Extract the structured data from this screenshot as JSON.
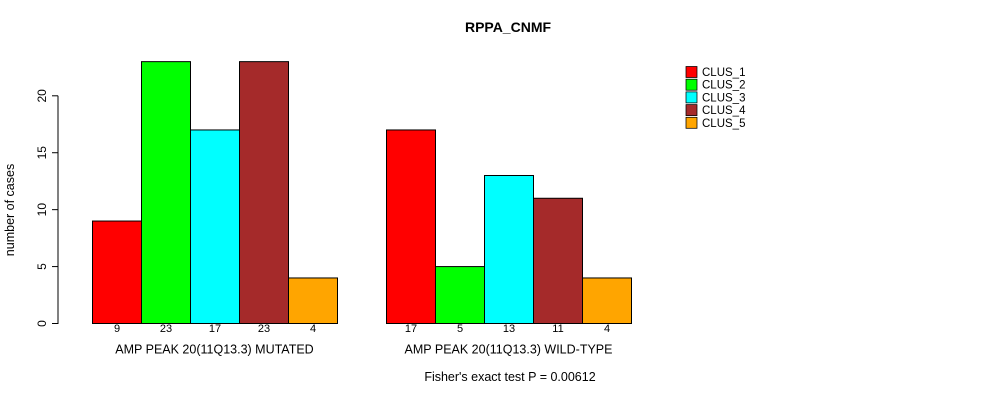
{
  "chart_data": {
    "type": "bar",
    "title": "RPPA_CNMF",
    "ylabel": "number of cases",
    "xlabel": "",
    "yticks": [
      0,
      5,
      10,
      15,
      20
    ],
    "ylim": [
      0,
      23.7
    ],
    "grid": false,
    "legend_position": "right",
    "bar_borders": true,
    "categories": [
      "AMP PEAK 20(11Q13.3) MUTATED",
      "AMP PEAK 20(11Q13.3) WILD-TYPE"
    ],
    "series": [
      {
        "name": "CLUS_1",
        "color": "#ff0000",
        "values": [
          9,
          17
        ]
      },
      {
        "name": "CLUS_2",
        "color": "#00ff00",
        "values": [
          23,
          5
        ]
      },
      {
        "name": "CLUS_3",
        "color": "#00ffff",
        "values": [
          17,
          13
        ]
      },
      {
        "name": "CLUS_4",
        "color": "#a52a2a",
        "values": [
          23,
          11
        ]
      },
      {
        "name": "CLUS_5",
        "color": "#ffa500",
        "values": [
          4,
          4
        ]
      }
    ],
    "bar_value_labels": {
      "AMP PEAK 20(11Q13.3) MUTATED": [
        9,
        23,
        17,
        23,
        4
      ],
      "AMP PEAK 20(11Q13.3) WILD-TYPE": [
        17,
        5,
        13,
        11,
        4
      ]
    },
    "annotation": "Fisher's exact test P = 0.00612"
  }
}
